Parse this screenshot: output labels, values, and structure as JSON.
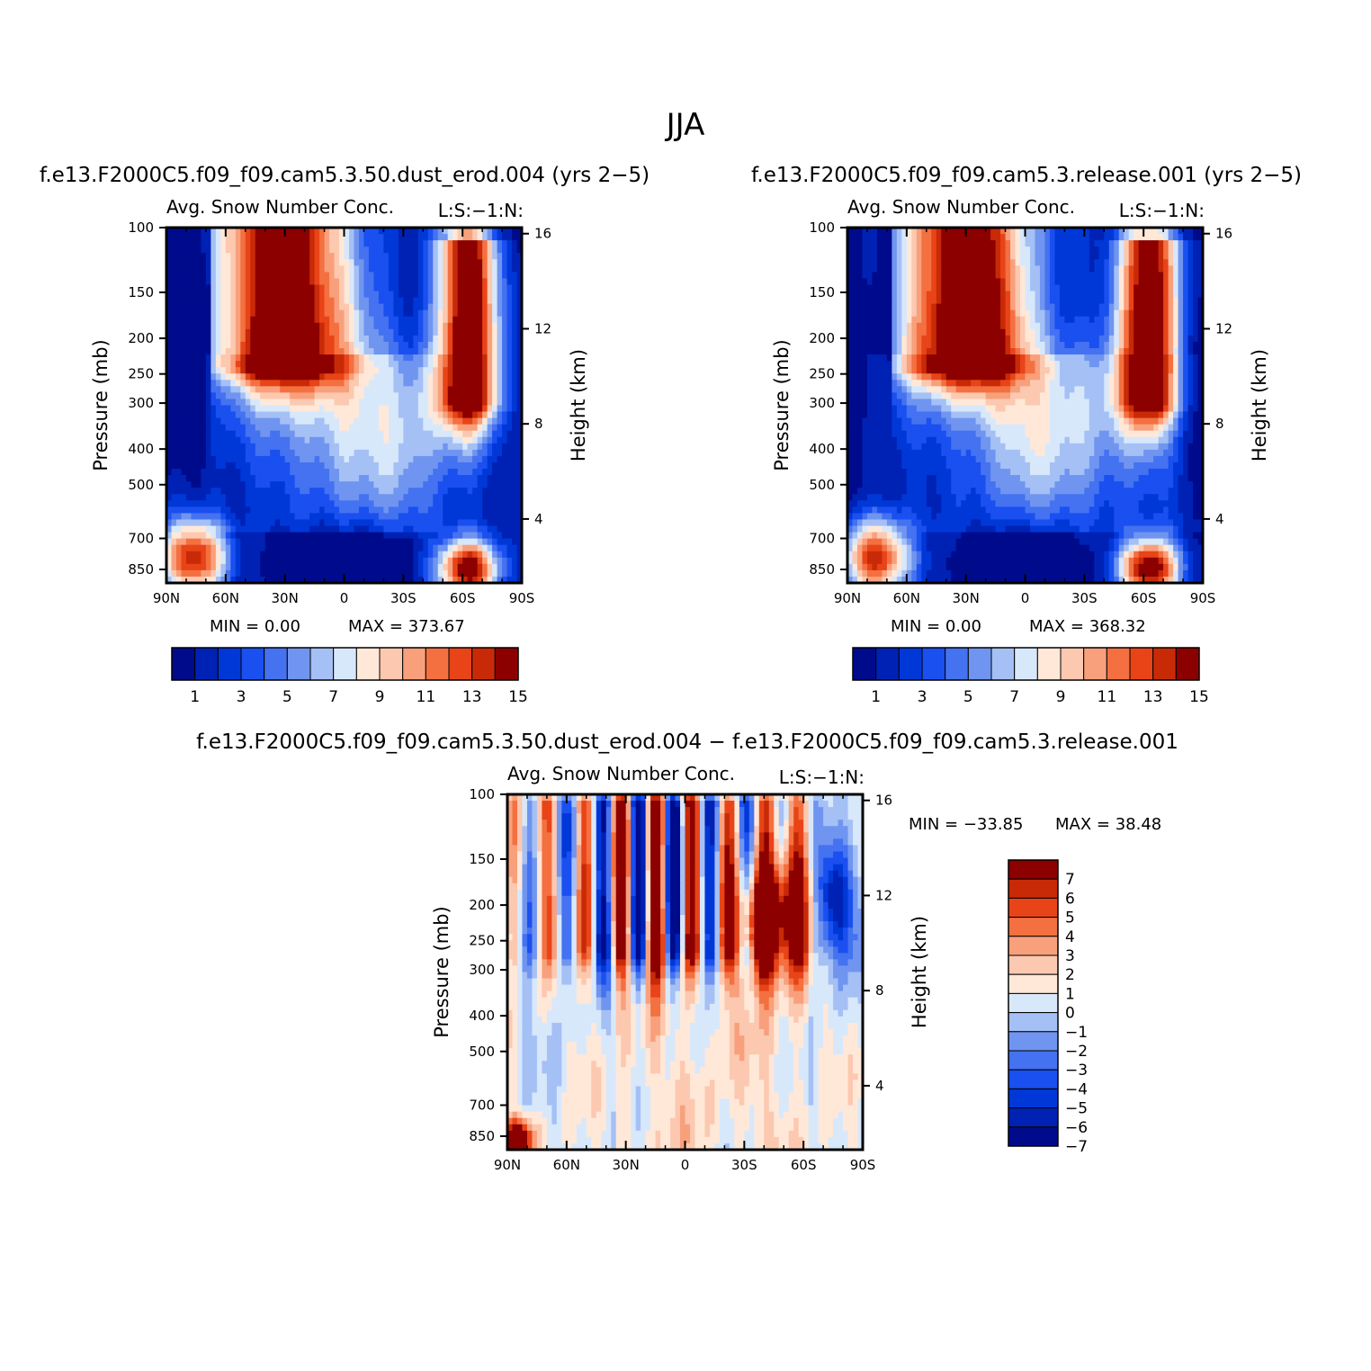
{
  "title": "JJA",
  "colors": {
    "seq": [
      "#000b8c",
      "#0022b4",
      "#0038d8",
      "#1a4ff0",
      "#4472f0",
      "#7095f0",
      "#a5c0f5",
      "#d8e8fb",
      "#ffe8d8",
      "#fcc8b0",
      "#f8a07c",
      "#f47040",
      "#e84418",
      "#c82a08",
      "#8c0000"
    ],
    "diff": [
      "#000b8c",
      "#0022b4",
      "#0038d8",
      "#1a4ff0",
      "#4472f0",
      "#7095f0",
      "#a5c0f5",
      "#d8e8fb",
      "#ffe8d8",
      "#fcc8b0",
      "#f8a07c",
      "#f47040",
      "#e84418",
      "#c82a08",
      "#8c0000"
    ]
  },
  "chart_data": [
    {
      "type": "heatmap",
      "panel_title": "f.e13.F2000C5.f09_f09.cam5.3.50.dust_erod.004 (yrs 2−5)",
      "variable": "Avg. Snow Number Conc.",
      "units_note": "L:S:−1:N:",
      "xlabel": "",
      "ylabel": "Pressure (mb)",
      "ylabel_right": "Height (km)",
      "x_ticks": [
        "90N",
        "60N",
        "30N",
        "0",
        "30S",
        "60S",
        "90S"
      ],
      "y_ticks": [
        "100",
        "150",
        "200",
        "250",
        "300",
        "400",
        "500",
        "700",
        "850"
      ],
      "y_ticks_right": [
        "16",
        "12",
        "8",
        "4"
      ],
      "min_text": "MIN =    0.00",
      "max_text": "MAX = 373.67",
      "colorbar_labels": [
        "1",
        "3",
        "5",
        "7",
        "9",
        "11",
        "13",
        "15"
      ],
      "levels": [
        1,
        2,
        3,
        4,
        5,
        6,
        7,
        8,
        9,
        10,
        11,
        12,
        13,
        14,
        15
      ]
    },
    {
      "type": "heatmap",
      "panel_title": "f.e13.F2000C5.f09_f09.cam5.3.release.001 (yrs 2−5)",
      "variable": "Avg. Snow Number Conc.",
      "units_note": "L:S:−1:N:",
      "xlabel": "",
      "ylabel": "Pressure (mb)",
      "ylabel_right": "Height (km)",
      "x_ticks": [
        "90N",
        "60N",
        "30N",
        "0",
        "30S",
        "60S",
        "90S"
      ],
      "y_ticks": [
        "100",
        "150",
        "200",
        "250",
        "300",
        "400",
        "500",
        "700",
        "850"
      ],
      "y_ticks_right": [
        "16",
        "12",
        "8",
        "4"
      ],
      "min_text": "MIN =    0.00",
      "max_text": "MAX = 368.32",
      "colorbar_labels": [
        "1",
        "3",
        "5",
        "7",
        "9",
        "11",
        "13",
        "15"
      ],
      "levels": [
        1,
        2,
        3,
        4,
        5,
        6,
        7,
        8,
        9,
        10,
        11,
        12,
        13,
        14,
        15
      ]
    },
    {
      "type": "heatmap",
      "panel_title": "f.e13.F2000C5.f09_f09.cam5.3.50.dust_erod.004 − f.e13.F2000C5.f09_f09.cam5.3.release.001",
      "variable": "Avg. Snow Number Conc.",
      "units_note": "L:S:−1:N:",
      "xlabel": "",
      "ylabel": "Pressure (mb)",
      "ylabel_right": "Height (km)",
      "x_ticks": [
        "90N",
        "60N",
        "30N",
        "0",
        "30S",
        "60S",
        "90S"
      ],
      "y_ticks": [
        "100",
        "150",
        "200",
        "250",
        "300",
        "400",
        "500",
        "700",
        "850"
      ],
      "y_ticks_right": [
        "16",
        "12",
        "8",
        "4"
      ],
      "min_text": "MIN = −33.85",
      "max_text": "MAX =   38.48",
      "colorbar_labels": [
        "7",
        "6",
        "5",
        "4",
        "3",
        "2",
        "1",
        "0",
        "−1",
        "−2",
        "−3",
        "−4",
        "−5",
        "−6",
        "−7"
      ],
      "levels": [
        -7,
        -6,
        -5,
        -4,
        -3,
        -2,
        -1,
        0,
        1,
        2,
        3,
        4,
        5,
        6,
        7
      ]
    }
  ]
}
